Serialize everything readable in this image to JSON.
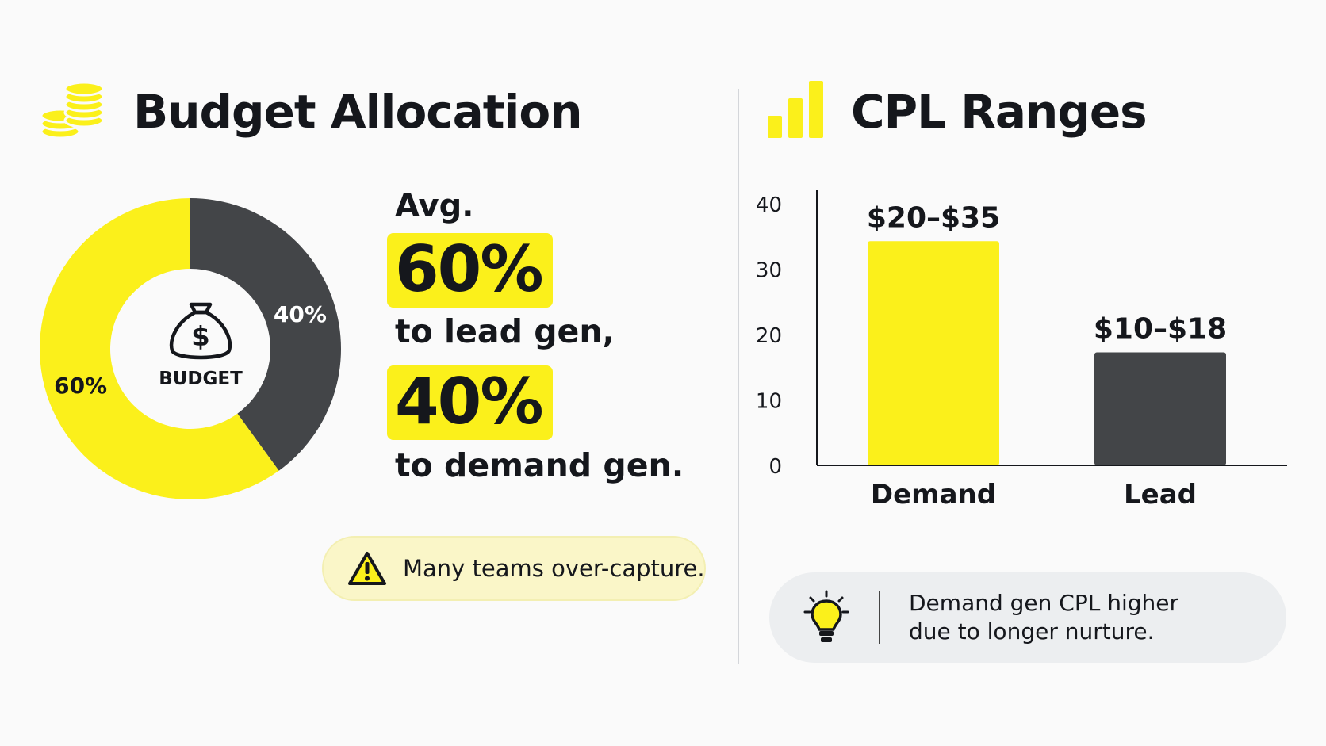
{
  "left": {
    "title": "Budget Allocation",
    "icon": "coins-icon",
    "stat": {
      "label": "Avg.",
      "lead_pct": "60%",
      "lead_text": "to lead gen,",
      "demand_pct": "40%",
      "demand_text": "to demand gen."
    },
    "note": {
      "icon": "warning-icon",
      "text": "Many teams over-capture."
    }
  },
  "right": {
    "title": "CPL Ranges",
    "icon": "bar-chart-icon",
    "note": {
      "icon": "lightbulb-icon",
      "text": "Demand gen CPL higher due to longer nurture."
    }
  },
  "colors": {
    "accent": "#fbf01b",
    "dark": "#434548",
    "text": "#15171c"
  },
  "chart_data": [
    {
      "type": "pie",
      "center_label": "BUDGET",
      "center_icon": "money-bag-icon",
      "slices": [
        {
          "label": "60%",
          "value": 60,
          "color": "#fbf01b"
        },
        {
          "label": "40%",
          "value": 40,
          "color": "#434548"
        }
      ]
    },
    {
      "type": "bar",
      "categories": [
        "Demand",
        "Lead"
      ],
      "values": [
        35,
        18
      ],
      "data_labels": [
        "$20–$35",
        "$10–$18"
      ],
      "colors": [
        "#fbf01b",
        "#434548"
      ],
      "ylim": [
        0,
        40
      ],
      "yticks": [
        0,
        10,
        20,
        30,
        40
      ],
      "grid": false
    }
  ]
}
